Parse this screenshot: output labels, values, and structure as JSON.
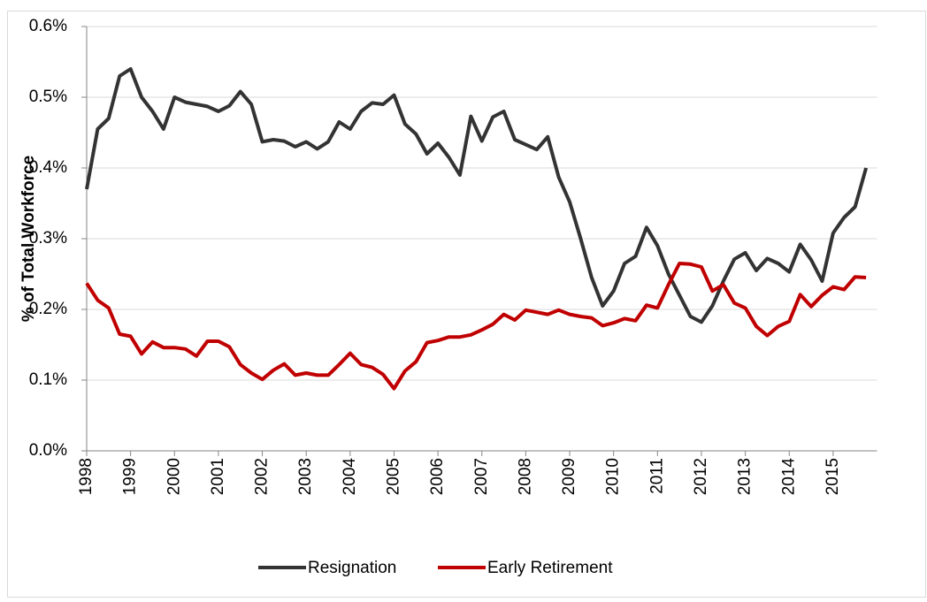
{
  "chart_data": {
    "type": "line",
    "y_label": "% of Total Workforce",
    "categories": [
      "1998",
      null,
      null,
      null,
      "1999",
      null,
      null,
      null,
      "2000",
      null,
      null,
      null,
      "2001",
      null,
      null,
      null,
      "2002",
      null,
      null,
      null,
      "2003",
      null,
      null,
      null,
      "2004",
      null,
      null,
      null,
      "2005",
      null,
      null,
      null,
      "2006",
      null,
      null,
      null,
      "2007",
      null,
      null,
      null,
      "2008",
      null,
      null,
      null,
      "2009",
      null,
      null,
      null,
      "2010",
      null,
      null,
      null,
      "2011",
      null,
      null,
      null,
      "2012",
      null,
      null,
      null,
      "2013",
      null,
      null,
      null,
      "2014",
      null,
      null,
      null,
      "2015",
      null,
      null,
      null
    ],
    "series": [
      {
        "name": "Resignation",
        "color": "#333333",
        "values": [
          0.37,
          0.455,
          0.47,
          0.53,
          0.54,
          0.5,
          0.48,
          0.455,
          0.5,
          0.493,
          0.49,
          0.487,
          0.48,
          0.488,
          0.508,
          0.49,
          0.437,
          0.44,
          0.438,
          0.43,
          0.437,
          0.427,
          0.437,
          0.465,
          0.455,
          0.48,
          0.492,
          0.49,
          0.503,
          0.462,
          0.448,
          0.42,
          0.435,
          0.415,
          0.39,
          0.473,
          0.438,
          0.472,
          0.48,
          0.44,
          0.433,
          0.426,
          0.444,
          0.387,
          0.352,
          0.3,
          0.245,
          0.205,
          0.226,
          0.265,
          0.275,
          0.316,
          0.29,
          0.25,
          0.22,
          0.19,
          0.182,
          0.205,
          0.24,
          0.271,
          0.28,
          0.255,
          0.272,
          0.265,
          0.253,
          0.292,
          0.27,
          0.24,
          0.308,
          0.33,
          0.345,
          0.4
        ]
      },
      {
        "name": "Early Retirement",
        "color": "#c00000",
        "values": [
          0.237,
          0.213,
          0.202,
          0.165,
          0.162,
          0.137,
          0.154,
          0.146,
          0.146,
          0.144,
          0.134,
          0.155,
          0.155,
          0.147,
          0.122,
          0.11,
          0.101,
          0.114,
          0.123,
          0.107,
          0.11,
          0.107,
          0.107,
          0.122,
          0.138,
          0.122,
          0.118,
          0.108,
          0.088,
          0.113,
          0.126,
          0.153,
          0.156,
          0.161,
          0.161,
          0.164,
          0.171,
          0.179,
          0.193,
          0.185,
          0.199,
          0.196,
          0.193,
          0.199,
          0.193,
          0.19,
          0.188,
          0.177,
          0.181,
          0.187,
          0.184,
          0.206,
          0.202,
          0.235,
          0.265,
          0.264,
          0.26,
          0.226,
          0.235,
          0.209,
          0.202,
          0.176,
          0.163,
          0.176,
          0.183,
          0.221,
          0.204,
          0.22,
          0.232,
          0.228,
          0.246,
          0.245
        ]
      }
    ],
    "ylim": [
      0,
      0.6
    ],
    "yticks": [
      {
        "value": 0,
        "label": "0.0%"
      },
      {
        "value": 0.1,
        "label": "0.1%"
      },
      {
        "value": 0.2,
        "label": "0.2%"
      },
      {
        "value": 0.3,
        "label": "0.3%"
      },
      {
        "value": 0.4,
        "label": "0.4%"
      },
      {
        "value": 0.5,
        "label": "0.5%"
      },
      {
        "value": 0.6,
        "label": "0.6%"
      }
    ],
    "grid": true,
    "legend": "bottom"
  }
}
